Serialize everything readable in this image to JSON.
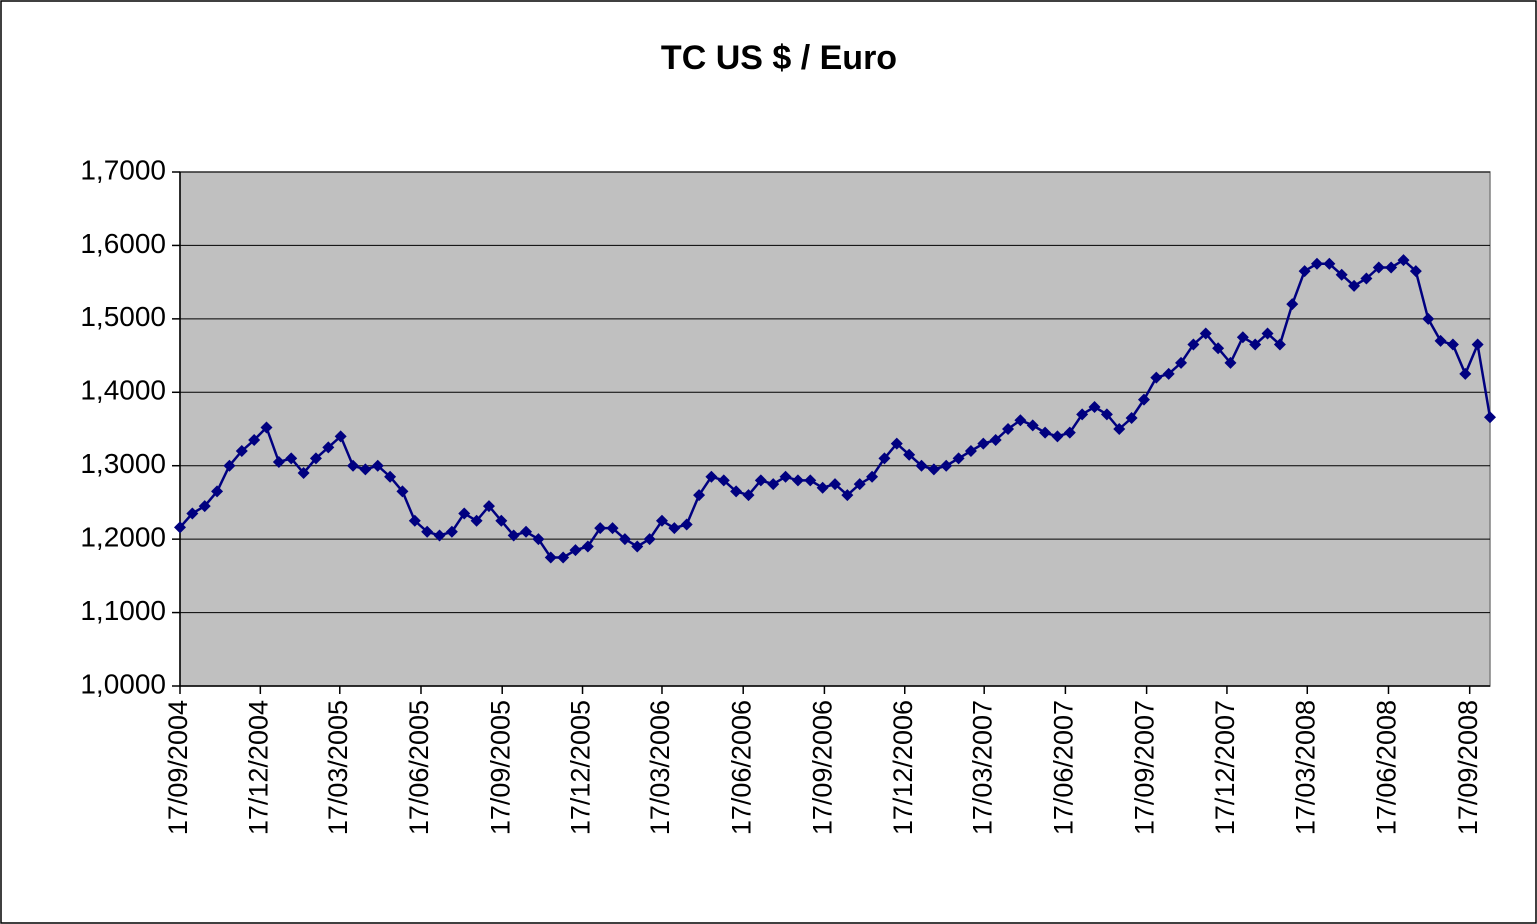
{
  "chart_data": {
    "type": "line",
    "title": "TC US $ / Euro",
    "x": [
      "17/09/2004",
      "01/10/2004",
      "15/10/2004",
      "29/10/2004",
      "12/11/2004",
      "26/11/2004",
      "10/12/2004",
      "24/12/2004",
      "07/01/2005",
      "21/01/2005",
      "04/02/2005",
      "18/02/2005",
      "04/03/2005",
      "18/03/2005",
      "01/04/2005",
      "15/04/2005",
      "29/04/2005",
      "13/05/2005",
      "27/05/2005",
      "10/06/2005",
      "24/06/2005",
      "08/07/2005",
      "22/07/2005",
      "05/08/2005",
      "19/08/2005",
      "02/09/2005",
      "16/09/2005",
      "30/09/2005",
      "14/10/2005",
      "28/10/2005",
      "11/11/2005",
      "25/11/2005",
      "09/12/2005",
      "23/12/2005",
      "06/01/2006",
      "20/01/2006",
      "03/02/2006",
      "17/02/2006",
      "03/03/2006",
      "17/03/2006",
      "31/03/2006",
      "14/04/2006",
      "28/04/2006",
      "12/05/2006",
      "26/05/2006",
      "09/06/2006",
      "23/06/2006",
      "07/07/2006",
      "21/07/2006",
      "04/08/2006",
      "18/08/2006",
      "01/09/2006",
      "15/09/2006",
      "29/09/2006",
      "13/10/2006",
      "27/10/2006",
      "10/11/2006",
      "24/11/2006",
      "08/12/2006",
      "22/12/2006",
      "05/01/2007",
      "19/01/2007",
      "02/02/2007",
      "16/02/2007",
      "02/03/2007",
      "16/03/2007",
      "30/03/2007",
      "13/04/2007",
      "27/04/2007",
      "11/05/2007",
      "25/05/2007",
      "08/06/2007",
      "22/06/2007",
      "06/07/2007",
      "20/07/2007",
      "03/08/2007",
      "17/08/2007",
      "31/08/2007",
      "14/09/2007",
      "28/09/2007",
      "12/10/2007",
      "26/10/2007",
      "09/11/2007",
      "23/11/2007",
      "07/12/2007",
      "21/12/2007",
      "04/01/2008",
      "18/01/2008",
      "01/02/2008",
      "15/02/2008",
      "29/02/2008",
      "14/03/2008",
      "28/03/2008",
      "11/04/2008",
      "25/04/2008",
      "09/05/2008",
      "23/05/2008",
      "06/06/2008",
      "20/06/2008",
      "04/07/2008",
      "18/07/2008",
      "01/08/2008",
      "15/08/2008",
      "29/08/2008",
      "12/09/2008",
      "26/09/2008",
      "10/10/2008"
    ],
    "series": [
      {
        "color": "#000080",
        "values": [
          1.216,
          1.235,
          1.245,
          1.265,
          1.3,
          1.32,
          1.335,
          1.352,
          1.305,
          1.31,
          1.29,
          1.31,
          1.325,
          1.34,
          1.3,
          1.295,
          1.3,
          1.285,
          1.265,
          1.225,
          1.21,
          1.205,
          1.21,
          1.235,
          1.225,
          1.245,
          1.225,
          1.205,
          1.21,
          1.2,
          1.175,
          1.175,
          1.185,
          1.19,
          1.215,
          1.215,
          1.2,
          1.19,
          1.2,
          1.225,
          1.215,
          1.22,
          1.26,
          1.285,
          1.28,
          1.265,
          1.26,
          1.28,
          1.275,
          1.285,
          1.28,
          1.28,
          1.27,
          1.275,
          1.26,
          1.275,
          1.285,
          1.31,
          1.33,
          1.315,
          1.3,
          1.295,
          1.3,
          1.31,
          1.32,
          1.33,
          1.335,
          1.35,
          1.362,
          1.355,
          1.345,
          1.34,
          1.345,
          1.37,
          1.38,
          1.37,
          1.35,
          1.365,
          1.39,
          1.42,
          1.425,
          1.44,
          1.465,
          1.48,
          1.46,
          1.44,
          1.475,
          1.465,
          1.48,
          1.465,
          1.52,
          1.565,
          1.575,
          1.575,
          1.56,
          1.545,
          1.555,
          1.57,
          1.57,
          1.58,
          1.565,
          1.5,
          1.47,
          1.465,
          1.425,
          1.465,
          1.366
        ]
      }
    ],
    "xlim": [
      "17/09/2004",
      "10/10/2008"
    ],
    "xticks": [
      "17/09/2004",
      "17/12/2004",
      "17/03/2005",
      "17/06/2005",
      "17/09/2005",
      "17/12/2005",
      "17/03/2006",
      "17/06/2006",
      "17/09/2006",
      "17/12/2006",
      "17/03/2007",
      "17/06/2007",
      "17/09/2007",
      "17/12/2007",
      "17/03/2008",
      "17/06/2008",
      "17/09/2008"
    ],
    "ylim": [
      1.0,
      1.7
    ],
    "yticks": [
      {
        "value": 1.0,
        "label": "1,0000"
      },
      {
        "value": 1.1,
        "label": "1,1000"
      },
      {
        "value": 1.2,
        "label": "1,2000"
      },
      {
        "value": 1.3,
        "label": "1,3000"
      },
      {
        "value": 1.4,
        "label": "1,4000"
      },
      {
        "value": 1.5,
        "label": "1,5000"
      },
      {
        "value": 1.6,
        "label": "1,6000"
      },
      {
        "value": 1.7,
        "label": "1,7000"
      }
    ],
    "grid": true
  }
}
